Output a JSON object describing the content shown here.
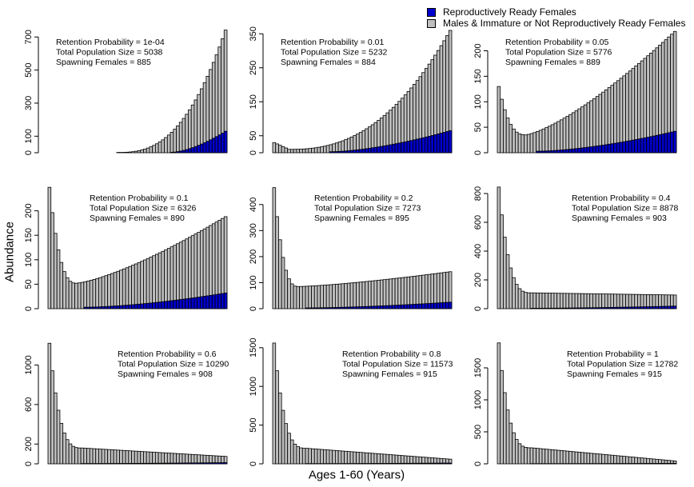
{
  "figure": {
    "ylabel": "Abundance",
    "xlabel": "Ages 1-60 (Years)",
    "legend": [
      {
        "label": "Reproductively Ready Females",
        "color": "#0000cd"
      },
      {
        "label": "Males & Immature or Not Reproductively Ready Females",
        "color": "#bebebe"
      }
    ]
  },
  "chart_data": [
    {
      "type": "bar",
      "stacked": true,
      "x": "ages 1-60",
      "ylim": [
        0,
        740
      ],
      "yticks": [
        0,
        100,
        300,
        500,
        700
      ],
      "annotations": [
        "Retention Probability = 1e-04",
        "Total Population Size = 5038",
        "Spawning Females = 885"
      ],
      "total_profile": {
        "shape": "rising",
        "first_nonzero_age": 24,
        "end": 740
      },
      "female_profile": {
        "first_nonzero_age": 42,
        "end": 130
      }
    },
    {
      "type": "bar",
      "stacked": true,
      "x": "ages 1-60",
      "ylim": [
        0,
        360
      ],
      "yticks": [
        0,
        50,
        150,
        250,
        350
      ],
      "annotations": [
        "Retention Probability = 0.01",
        "Total Population Size = 5232",
        "Spawning Females = 884"
      ],
      "total_profile": {
        "shape": "rising",
        "start": 30,
        "min": 10,
        "min_age": 6,
        "end": 360
      },
      "female_profile": {
        "first_nonzero_age": 20,
        "end": 65
      }
    },
    {
      "type": "bar",
      "stacked": true,
      "x": "ages 1-60",
      "ylim": [
        0,
        240
      ],
      "yticks": [
        0,
        50,
        100,
        150,
        200
      ],
      "annotations": [
        "Retention Probability = 0.05",
        "Total Population Size = 5776",
        "Spawning Females = 889"
      ],
      "total_profile": {
        "shape": "u",
        "start": 130,
        "min": 35,
        "min_age": 10,
        "end": 238
      },
      "female_profile": {
        "first_nonzero_age": 14,
        "end": 42
      }
    },
    {
      "type": "bar",
      "stacked": true,
      "x": "ages 1-60",
      "ylim": [
        0,
        250
      ],
      "yticks": [
        0,
        50,
        100,
        150,
        200
      ],
      "annotations": [
        "Retention Probability = 0.1",
        "Total Population Size = 6326",
        "Spawning Females = 890"
      ],
      "total_profile": {
        "shape": "u",
        "start": 248,
        "min": 52,
        "min_age": 10,
        "end": 188
      },
      "female_profile": {
        "first_nonzero_age": 13,
        "end": 32
      }
    },
    {
      "type": "bar",
      "stacked": true,
      "x": "ages 1-60",
      "ylim": [
        0,
        470
      ],
      "yticks": [
        0,
        100,
        200,
        300,
        400
      ],
      "annotations": [
        "Retention Probability = 0.2",
        "Total Population Size = 7273",
        "Spawning Females = 895"
      ],
      "total_profile": {
        "shape": "u",
        "start": 465,
        "min": 85,
        "min_age": 9,
        "end": 142
      },
      "female_profile": {
        "first_nonzero_age": 12,
        "end": 25
      }
    },
    {
      "type": "bar",
      "stacked": true,
      "x": "ages 1-60",
      "ylim": [
        0,
        850
      ],
      "yticks": [
        0,
        200,
        400,
        600,
        800
      ],
      "annotations": [
        "Retention Probability = 0.4",
        "Total Population Size = 8878",
        "Spawning Females = 903"
      ],
      "total_profile": {
        "shape": "decay",
        "start": 845,
        "min": 110,
        "min_age": 12,
        "end": 95
      },
      "female_profile": {
        "first_nonzero_age": 12,
        "end": 18
      }
    },
    {
      "type": "bar",
      "stacked": true,
      "x": "ages 1-60",
      "ylim": [
        0,
        1230
      ],
      "yticks": [
        0,
        200,
        600,
        1000
      ],
      "annotations": [
        "Retention Probability = 0.6",
        "Total Population Size = 10290",
        "Spawning Females = 908"
      ],
      "total_profile": {
        "shape": "decay",
        "start": 1220,
        "min": 160,
        "min_age": 12,
        "end": 75
      },
      "female_profile": {
        "first_nonzero_age": 12,
        "end": 12
      }
    },
    {
      "type": "bar",
      "stacked": true,
      "x": "ages 1-60",
      "ylim": [
        0,
        1570
      ],
      "yticks": [
        0,
        500,
        1000,
        1500
      ],
      "annotations": [
        "Retention Probability = 0.8",
        "Total Population Size = 11573",
        "Spawning Females = 915"
      ],
      "total_profile": {
        "shape": "decay",
        "start": 1560,
        "min": 200,
        "min_age": 12,
        "end": 60
      },
      "female_profile": {
        "first_nonzero_age": 12,
        "end": 10
      }
    },
    {
      "type": "bar",
      "stacked": true,
      "x": "ages 1-60",
      "ylim": [
        0,
        1900
      ],
      "yticks": [
        0,
        500,
        1000,
        1500
      ],
      "annotations": [
        "Retention Probability = 1",
        "Total Population Size = 12782",
        "Spawning Females = 915"
      ],
      "total_profile": {
        "shape": "decay",
        "start": 1890,
        "min": 250,
        "min_age": 12,
        "end": 45
      },
      "female_profile": {
        "first_nonzero_age": 12,
        "end": 8
      }
    }
  ]
}
